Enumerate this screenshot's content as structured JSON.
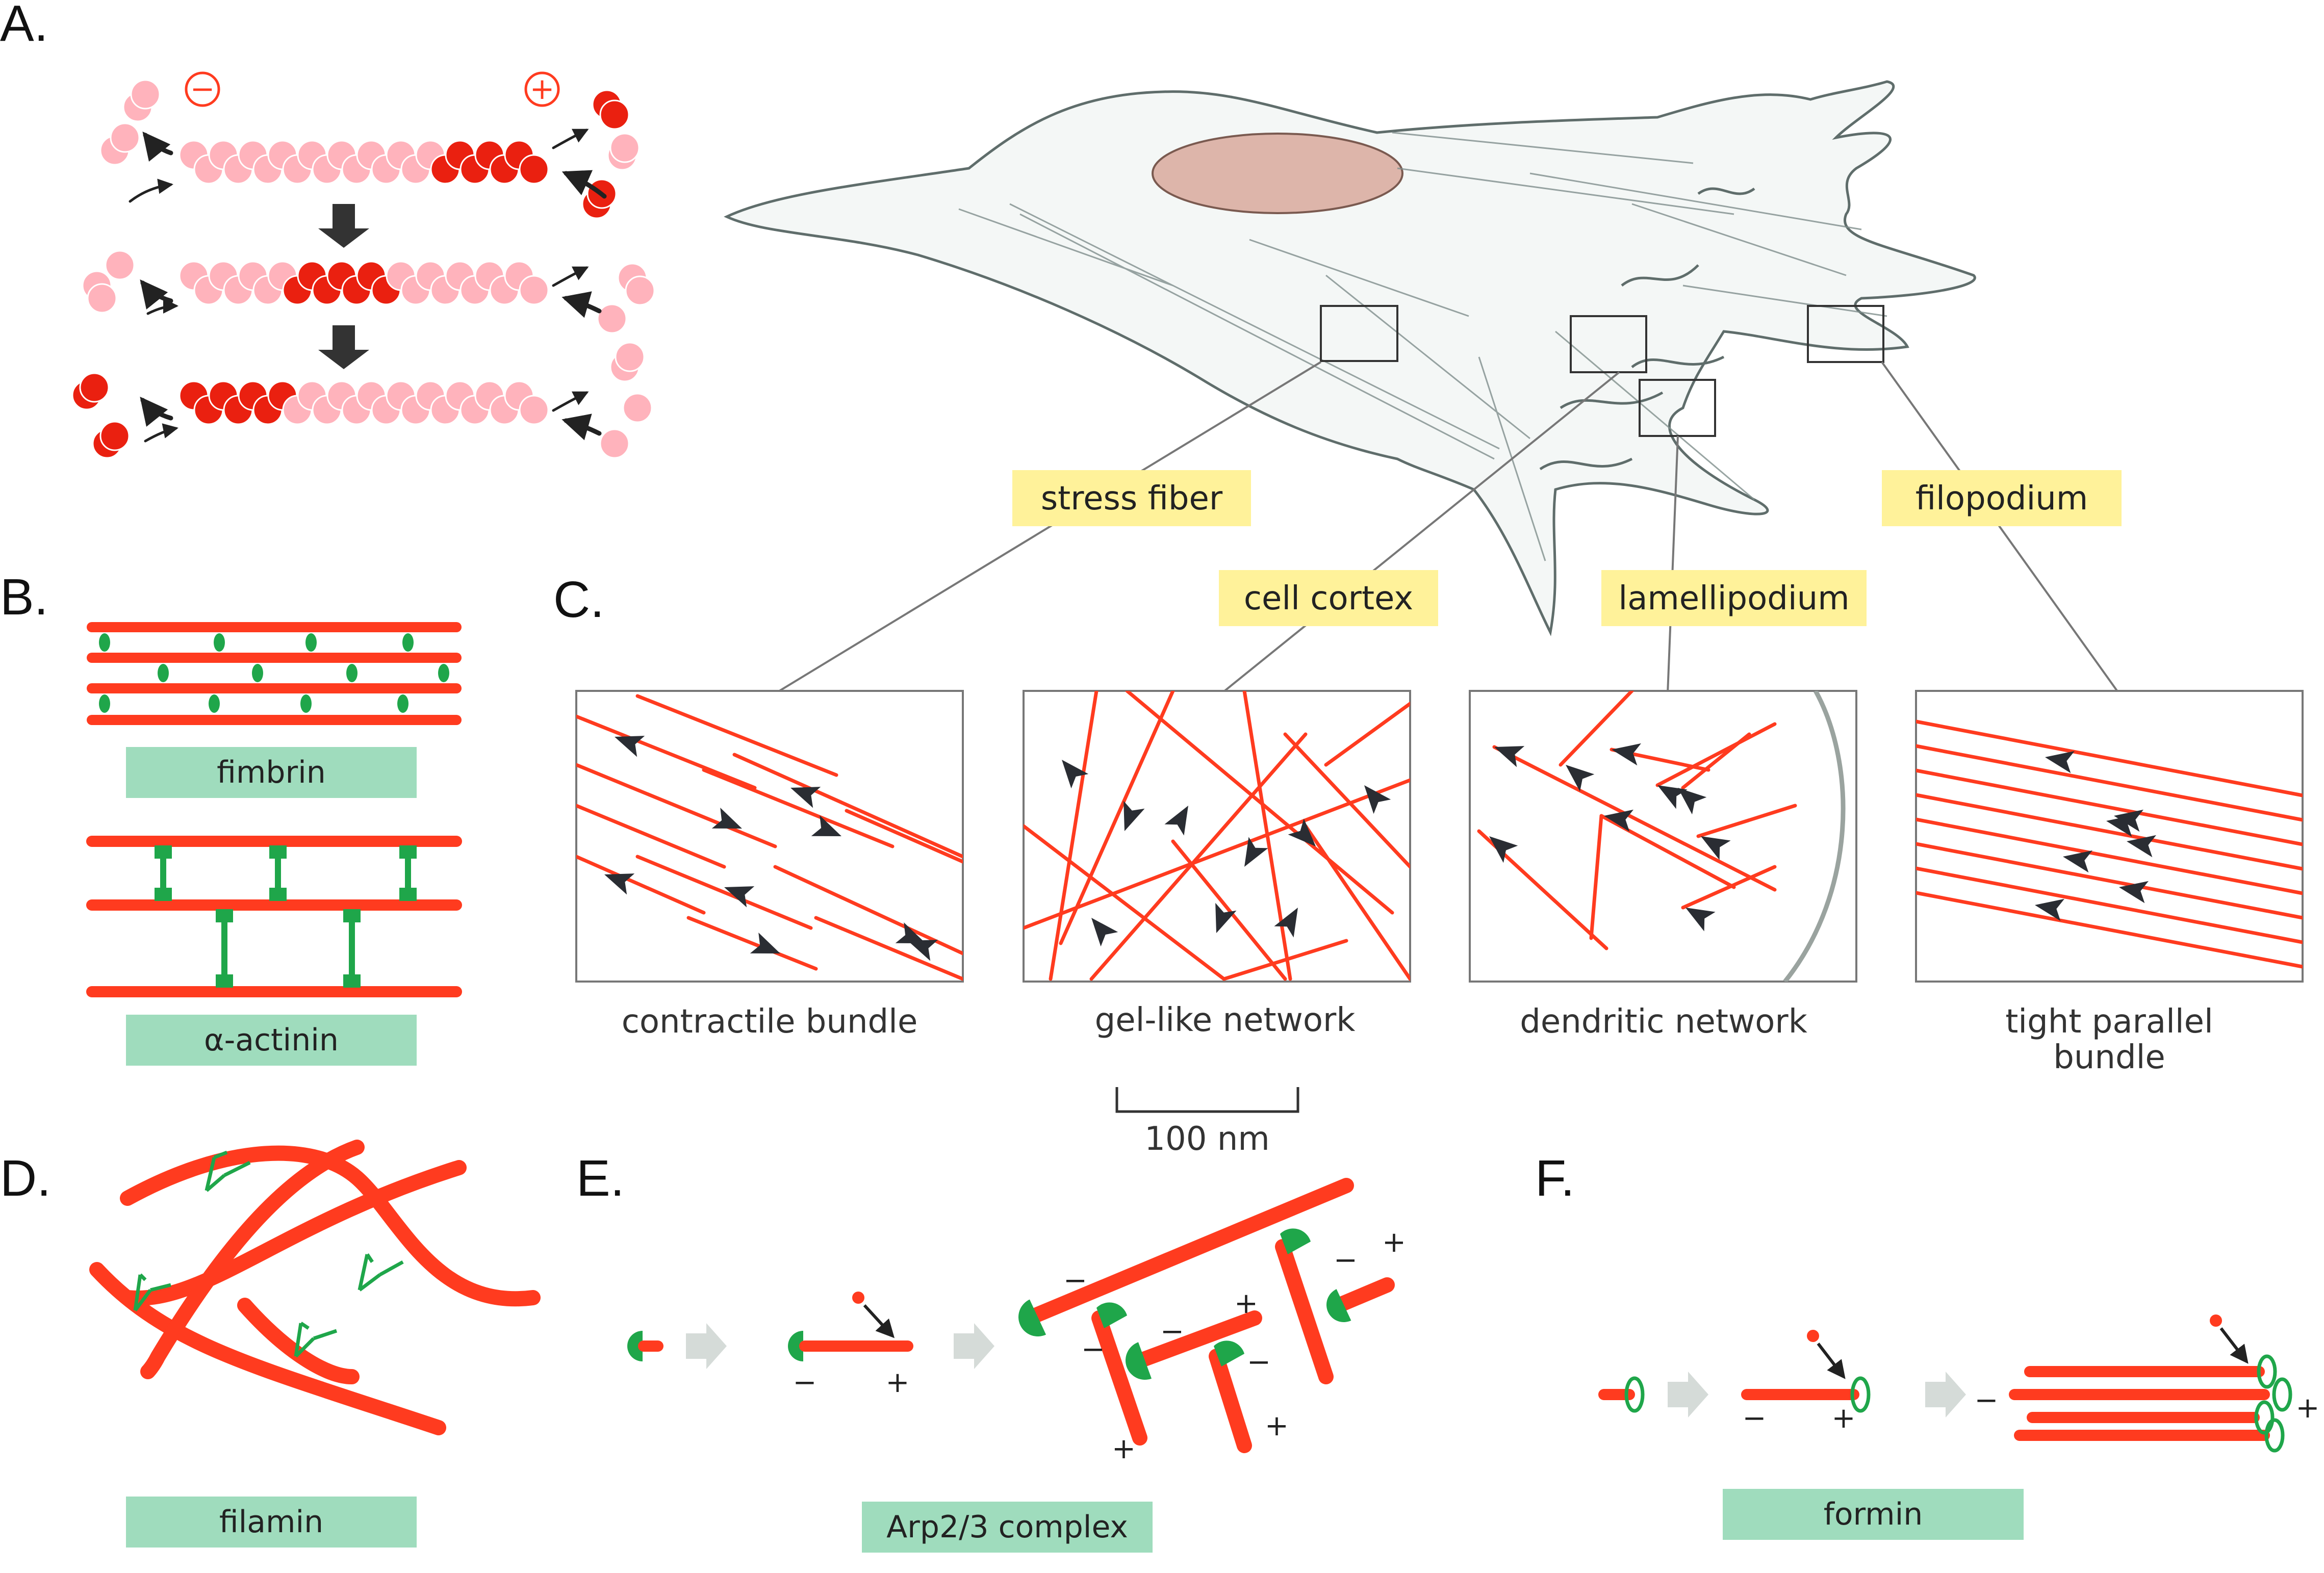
{
  "panels": {
    "a": "A.",
    "b": "B.",
    "c": "C.",
    "d": "D.",
    "e": "E.",
    "f": "F."
  },
  "signs": {
    "minus": "−",
    "plus": "+"
  },
  "cell_labels": {
    "stress_fiber": "stress fiber",
    "cell_cortex": "cell cortex",
    "lamellipodium": "lamellipodium",
    "filopodium": "filopodium"
  },
  "inset_captions": {
    "contractile": "contractile bundle",
    "gel": "gel-like network",
    "dendritic": "dendritic network",
    "tight_line1": "tight parallel",
    "tight_line2": "bundle"
  },
  "scale_bar": "100 nm",
  "protein_labels": {
    "fimbrin": "fimbrin",
    "actinin": "α-actinin",
    "filamin": "filamin",
    "arp": "Arp2/3 complex",
    "formin": "formin"
  },
  "colors": {
    "actin": "#ff3b1f",
    "actin_light": "#ffb3bc",
    "actin_dark": "#ea2010",
    "binding_protein": "#1fa64a",
    "yellow_label": "#fff29a",
    "green_label": "#9fdcbd"
  }
}
